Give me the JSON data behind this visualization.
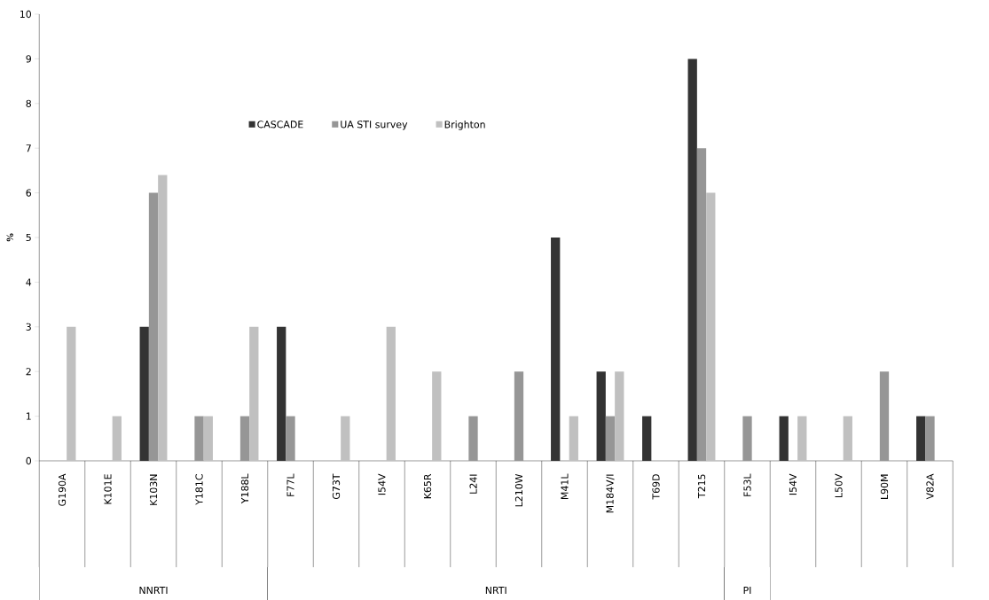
{
  "chart_data": {
    "type": "bar",
    "ylabel": "%",
    "categories": [
      "G190A",
      "K101E",
      "K103N",
      "Y181C",
      "Y188L",
      "F77L",
      "G73T",
      "I54V",
      "K65R",
      "L24I",
      "L210W",
      "M41L",
      "M184V/I",
      "T69D",
      "T215",
      "F53L",
      "I54V",
      "L50V",
      "L90M",
      "V82A"
    ],
    "series": [
      {
        "name": "CASCADE",
        "color": "#333333",
        "values": [
          null,
          null,
          3,
          null,
          null,
          3,
          null,
          null,
          null,
          null,
          null,
          5,
          2,
          1,
          9,
          null,
          1,
          null,
          null,
          1
        ]
      },
      {
        "name": "UA STI survey",
        "color": "#969696",
        "values": [
          null,
          null,
          6,
          1,
          1,
          1,
          null,
          null,
          null,
          1,
          2,
          null,
          1,
          null,
          7,
          1,
          null,
          null,
          2,
          1
        ]
      },
      {
        "name": "Brighton",
        "color": "#c0c0c0",
        "values": [
          3,
          1,
          6.4,
          1,
          3,
          null,
          1,
          3,
          2,
          null,
          null,
          1,
          2,
          null,
          6,
          null,
          1,
          1,
          null,
          null
        ]
      }
    ],
    "ylim": [
      0,
      10
    ],
    "yticks": [
      0,
      1,
      2,
      3,
      4,
      5,
      6,
      7,
      8,
      9,
      10
    ],
    "legend": "top",
    "annotations": [
      "NNRTI",
      "NRTI",
      "PI"
    ]
  }
}
